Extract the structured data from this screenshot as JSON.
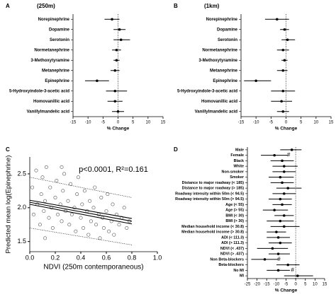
{
  "chart_data": [
    {
      "type": "forest",
      "panel_label": "A",
      "title": "(250m)",
      "xlabel": "% Change",
      "color": "#000000",
      "categories": [
        "Norepinephrine",
        "Dopamine",
        "Serotonin",
        "Normetanephrine",
        "3-Methoxytyramine",
        "Metanephrine",
        "Epinephrine",
        "5-Hydroxyindole-3-acetic acid",
        "Homovanillic acid",
        "Vanillylmandelic acid"
      ],
      "values": [
        -2,
        0.5,
        1,
        -0.5,
        -0.5,
        -1,
        -7,
        -1,
        -1,
        0
      ],
      "lower": [
        -4.5,
        -1.5,
        -1.5,
        -2,
        -1.5,
        -2.5,
        -11,
        -4,
        -3.5,
        -2
      ],
      "upper": [
        0.5,
        2.5,
        4,
        1,
        0.5,
        0.5,
        -3,
        3,
        1.5,
        2
      ],
      "xlim": [
        -15,
        15
      ],
      "xticks": [
        -15,
        -10,
        -5,
        0,
        5,
        10,
        15
      ]
    },
    {
      "type": "forest",
      "panel_label": "B",
      "title": "(1km)",
      "xlabel": "% Change",
      "color": "#000000",
      "categories": [
        "Norepinephrine",
        "Dopamine",
        "Serotonin",
        "Normetanephrine",
        "3-Methoxytyramine",
        "Metanephrine",
        "Epinephrine",
        "5-Hydroxyindole-3-acetic acid",
        "Homovanillic acid",
        "Vanillylmandelic acid"
      ],
      "values": [
        -3,
        -0.5,
        0.5,
        -1,
        -0.5,
        -1,
        -10,
        -1,
        -1.5,
        -1
      ],
      "lower": [
        -7,
        -2,
        -1.5,
        -3,
        -1.5,
        -3,
        -14,
        -5,
        -5,
        -3
      ],
      "upper": [
        1,
        1,
        3,
        1,
        0.5,
        0.5,
        -5,
        3,
        2,
        1
      ],
      "xlim": [
        -15,
        15
      ],
      "xticks": [
        -15,
        -10,
        -5,
        0,
        5,
        10,
        15
      ]
    },
    {
      "type": "scatter",
      "panel_label": "C",
      "annotation": "p<0.0001, R²=0.161",
      "xlabel": "NDVI (250m contemporaneous)",
      "ylabel": "Predicted mean log(Epinephrine)",
      "color": "#555555",
      "x": [
        0.02,
        0.03,
        0.05,
        0.06,
        0.08,
        0.09,
        0.1,
        0.11,
        0.12,
        0.13,
        0.15,
        0.16,
        0.17,
        0.18,
        0.2,
        0.21,
        0.22,
        0.24,
        0.25,
        0.26,
        0.27,
        0.28,
        0.3,
        0.31,
        0.32,
        0.33,
        0.35,
        0.36,
        0.37,
        0.38,
        0.4,
        0.41,
        0.42,
        0.43,
        0.45,
        0.46,
        0.47,
        0.48,
        0.5,
        0.51,
        0.52,
        0.54,
        0.55,
        0.56,
        0.57,
        0.58,
        0.6,
        0.61,
        0.62,
        0.64,
        0.65,
        0.66,
        0.68,
        0.7,
        0.72,
        0.74,
        0.76,
        0.78,
        0.12,
        0.25
      ],
      "y": [
        2.3,
        1.9,
        2.55,
        2.05,
        1.75,
        2.2,
        2.45,
        1.95,
        2.1,
        2.6,
        1.85,
        2.3,
        2.0,
        1.7,
        2.15,
        2.4,
        1.9,
        2.05,
        1.8,
        2.25,
        2.5,
        1.95,
        2.1,
        1.75,
        2.35,
        1.9,
        2.0,
        1.65,
        2.2,
        2.45,
        1.85,
        2.05,
        1.7,
        2.25,
        1.95,
        1.6,
        2.1,
        1.8,
        2.0,
        2.3,
        1.75,
        1.9,
        1.55,
        2.15,
        1.85,
        1.7,
        1.95,
        2.2,
        1.65,
        1.8,
        2.05,
        1.6,
        1.9,
        1.75,
        1.85,
        2.0,
        1.7,
        1.8,
        1.55,
        2.6
      ],
      "lines": [
        {
          "x": [
            0,
            0.8
          ],
          "y": [
            2.08,
            1.8
          ],
          "style": "solid"
        },
        {
          "x": [
            0,
            0.8
          ],
          "y": [
            2.11,
            1.84
          ],
          "style": "solid"
        },
        {
          "x": [
            0,
            0.8
          ],
          "y": [
            2.05,
            1.76
          ],
          "style": "solid"
        },
        {
          "x": [
            0,
            0.8
          ],
          "y": [
            2.45,
            2.15
          ],
          "style": "dotted"
        },
        {
          "x": [
            0,
            0.8
          ],
          "y": [
            1.7,
            1.45
          ],
          "style": "dotted"
        }
      ],
      "xlim": [
        0,
        1
      ],
      "xticks": [
        {
          "value": 0,
          "label": "0.0"
        },
        0.2,
        0.4,
        0.6,
        0.8,
        {
          "value": 1,
          "label": "1.0"
        }
      ],
      "ylim": [
        1.35,
        2.75
      ],
      "yticks": [
        1.5,
        {
          "value": 2,
          "label": "2.0"
        },
        2.5
      ]
    },
    {
      "type": "forest",
      "panel_label": "D",
      "xlabel": "% Change",
      "color": "#000000",
      "categories": [
        "Male",
        "Female",
        "Black",
        "White",
        "Non-smoker",
        "Smoker",
        "Distance to major roadway (< 185)",
        "Distance to major roadway (> 185)",
        "Roadway intensity within 50m (< 94.5)",
        "Roadway intensity within 50m (> 94.5)",
        "Age (< 55)",
        "Age (> 55)",
        "BMI (< 30)",
        "BMI (> 30)",
        "Median household income (< 30.8)",
        "Median household income (> 30.8)",
        "ADI (< 111.3)",
        "ADI (> 111.3)",
        "NDVI (< .437)",
        "NDVI (> .437)",
        "Non Beta-blockers",
        "Beta-blockers",
        "No MI",
        "MI"
      ],
      "values": [
        -2,
        -11,
        -7,
        -6,
        -6,
        -8,
        -7,
        -4,
        -6,
        -8,
        -7,
        -11,
        -6,
        -8,
        -6,
        -10,
        -9,
        -8,
        -12,
        -9,
        -16,
        -4,
        -9,
        1
      ],
      "lower": [
        -8,
        -18,
        -13,
        -12,
        -12,
        -14,
        -13,
        -10,
        -12,
        -14,
        -12,
        -17,
        -11,
        -15,
        -13,
        -15,
        -15,
        -14,
        -20,
        -14,
        -23,
        -10,
        -15,
        -6
      ],
      "upper": [
        3,
        -4,
        -1,
        1,
        0,
        -1,
        -1,
        3,
        0,
        -2,
        -2,
        -4,
        -1,
        -1,
        2,
        -5,
        -3,
        -2,
        -4,
        -3,
        -9,
        2,
        -3,
        9
      ],
      "flags": [
        null,
        "#",
        null,
        null,
        null,
        null,
        null,
        null,
        null,
        null,
        null,
        null,
        null,
        null,
        null,
        null,
        null,
        null,
        null,
        null,
        "#",
        null,
        "#",
        null
      ],
      "xlim": [
        -25,
        15
      ],
      "xticks": [
        -25,
        -20,
        -15,
        -10,
        -5,
        0,
        5,
        10,
        15
      ]
    }
  ]
}
